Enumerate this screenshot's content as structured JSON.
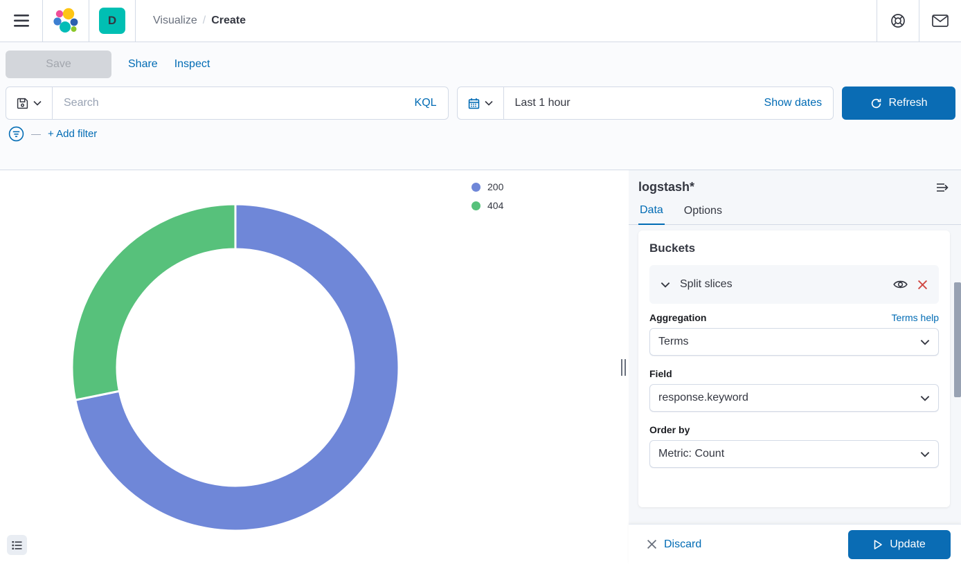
{
  "header": {
    "breadcrumb": {
      "section": "Visualize",
      "separator": "/",
      "current": "Create"
    },
    "space_badge": "D"
  },
  "toolbar": {
    "save_label": "Save",
    "share_label": "Share",
    "inspect_label": "Inspect"
  },
  "query_bar": {
    "search_placeholder": "Search",
    "kql_label": "KQL",
    "time_range": "Last 1 hour",
    "show_dates_label": "Show dates",
    "refresh_label": "Refresh"
  },
  "filter_bar": {
    "dash": "—",
    "add_filter_label": "+ Add filter"
  },
  "chart_data": {
    "type": "pie",
    "donut": true,
    "legend_position": "top-right",
    "title": "",
    "slices": [
      {
        "label": "200",
        "color": "#6f87d8",
        "percent": 71.8
      },
      {
        "label": "404",
        "color": "#57c17b",
        "percent": 28.2
      }
    ]
  },
  "editor": {
    "index_pattern": "logstash*",
    "tabs": {
      "data": "Data",
      "options": "Options"
    },
    "buckets": {
      "title": "Buckets",
      "accordion_label": "Split slices",
      "aggregation_label": "Aggregation",
      "aggregation_help": "Terms help",
      "aggregation_value": "Terms",
      "field_label": "Field",
      "field_value": "response.keyword",
      "order_by_label": "Order by",
      "order_by_value": "Metric: Count"
    },
    "discard_label": "Discard",
    "update_label": "Update"
  },
  "colors": {
    "link_blue": "#006BB4",
    "button_blue": "#0a6cb4",
    "danger_red": "#d04a45",
    "badge_teal": "#00BFB3",
    "text_dark": "#343741",
    "text_gray": "#69707d",
    "border_gray": "#d3dae6"
  }
}
